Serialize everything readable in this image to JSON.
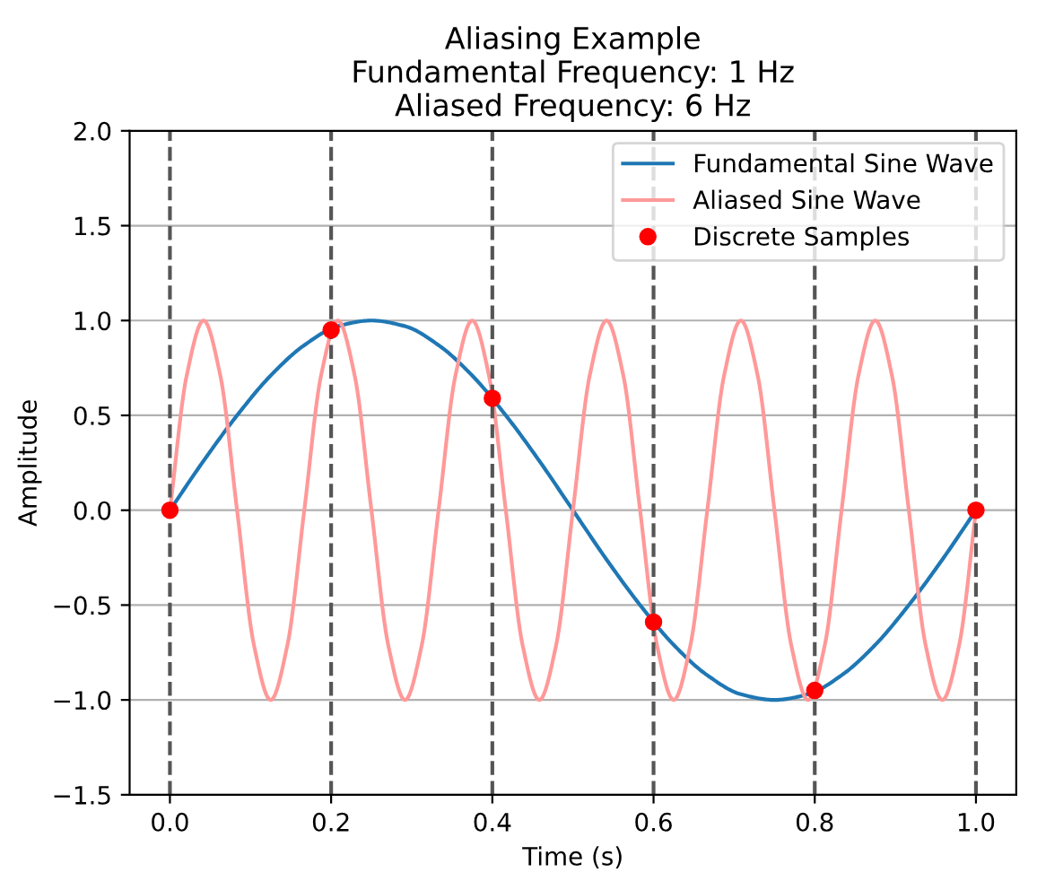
{
  "chart_data": {
    "type": "line",
    "title": "Aliasing Example\nFundamental Frequency: 1 Hz\nAliased Frequency: 6 Hz",
    "xlabel": "Time (s)",
    "ylabel": "Amplitude",
    "xlim": [
      -0.05,
      1.05
    ],
    "ylim": [
      -1.5,
      2.0
    ],
    "xticks": [
      {
        "value": 0,
        "label": "0.0"
      },
      0.2,
      0.4,
      0.6,
      0.8,
      {
        "value": 1,
        "label": "1.0"
      }
    ],
    "yticks": [
      {
        "value": -1.5,
        "label": "−1.5"
      },
      {
        "value": -1,
        "label": "−1.0"
      },
      {
        "value": -0.5,
        "label": "−0.5"
      },
      {
        "value": 0,
        "label": "0.0"
      },
      0.5,
      {
        "value": 1,
        "label": "1.0"
      },
      1.5,
      {
        "value": 2,
        "label": "2.0"
      }
    ],
    "grid": "y",
    "legend": "top right",
    "series": [
      {
        "name": "Fundamental Sine Wave",
        "color": "#1f77b4",
        "marker": "none",
        "x": [
          0,
          0.0417,
          0.0833,
          0.125,
          0.1667,
          0.2083,
          0.25,
          0.2917,
          0.3333,
          0.375,
          0.4167,
          0.4583,
          0.5,
          0.5417,
          0.5833,
          0.625,
          0.6667,
          0.7083,
          0.75,
          0.7917,
          0.8333,
          0.875,
          0.9167,
          0.9583,
          1
        ],
        "values": [
          0,
          0.26,
          0.5,
          0.71,
          0.87,
          0.97,
          1,
          0.97,
          0.87,
          0.71,
          0.5,
          0.26,
          0,
          -0.26,
          -0.5,
          -0.71,
          -0.87,
          -0.97,
          -1,
          -0.97,
          -0.87,
          -0.71,
          -0.5,
          -0.26,
          0
        ]
      },
      {
        "name": "Aliased Sine Wave",
        "color": "#ff9999",
        "marker": "none",
        "x": [
          0,
          0.0208,
          0.0417,
          0.0625,
          0.0833,
          0.1042,
          0.125,
          0.1458,
          0.1667,
          0.1875,
          0.2083,
          0.2292,
          0.25,
          0.2708,
          0.2917,
          0.3125,
          0.3333,
          0.3542,
          0.375,
          0.3958,
          0.4167,
          0.4375,
          0.4583,
          0.4792,
          0.5,
          0.5208,
          0.5417,
          0.5625,
          0.5833,
          0.6042,
          0.625,
          0.6458,
          0.6667,
          0.6875,
          0.7083,
          0.7292,
          0.75,
          0.7708,
          0.7917,
          0.8125,
          0.8333,
          0.8542,
          0.875,
          0.8958,
          0.9167,
          0.9375,
          0.9583,
          0.9792,
          1
        ],
        "values": [
          0,
          0.71,
          1,
          0.71,
          0,
          -0.71,
          -1,
          -0.71,
          0,
          0.71,
          1,
          0.71,
          0,
          -0.71,
          -1,
          -0.71,
          0,
          0.71,
          1,
          0.71,
          0,
          -0.71,
          -1,
          -0.71,
          0,
          0.71,
          1,
          0.71,
          0,
          -0.71,
          -1,
          -0.71,
          0,
          0.71,
          1,
          0.71,
          0,
          -0.71,
          -1,
          -0.71,
          0,
          0.71,
          1,
          0.71,
          0,
          -0.71,
          -1,
          -0.71,
          0
        ]
      },
      {
        "name": "Discrete Samples",
        "type": "scatter",
        "color": "#ff0000",
        "marker": "circle",
        "x": [
          0,
          0.2,
          0.4,
          0.6,
          0.8,
          1
        ],
        "values": [
          0,
          0.95,
          0.59,
          -0.59,
          -0.95,
          0
        ]
      }
    ],
    "ref_lines": [
      {
        "axis": "x",
        "value": 0,
        "color": "#555555",
        "line_style": "dashed"
      },
      {
        "axis": "x",
        "value": 0.2,
        "color": "#555555",
        "line_style": "dashed"
      },
      {
        "axis": "x",
        "value": 0.4,
        "color": "#555555",
        "line_style": "dashed"
      },
      {
        "axis": "x",
        "value": 0.6,
        "color": "#555555",
        "line_style": "dashed"
      },
      {
        "axis": "x",
        "value": 0.8,
        "color": "#555555",
        "line_style": "dashed"
      },
      {
        "axis": "x",
        "value": 1,
        "color": "#555555",
        "line_style": "dashed"
      }
    ]
  }
}
